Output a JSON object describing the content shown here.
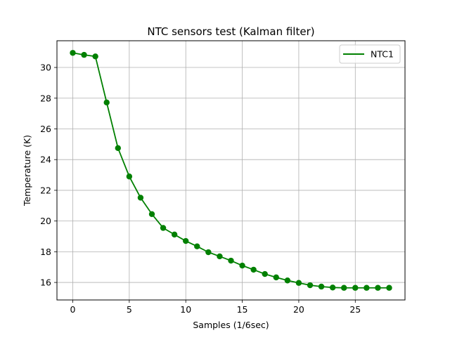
{
  "chart_data": {
    "type": "line",
    "title": "NTC sensors test (Kalman filter)",
    "xlabel": "Samples (1/6sec)",
    "ylabel": "Temperature (K)",
    "xlim": [
      -1.4,
      29.4
    ],
    "ylim": [
      14.86,
      31.74
    ],
    "xticks": [
      0,
      5,
      10,
      15,
      20,
      25
    ],
    "yticks": [
      16,
      18,
      20,
      22,
      24,
      26,
      28,
      30
    ],
    "grid": true,
    "legend_position": "top-right",
    "series": [
      {
        "name": "NTC1",
        "color": "#008000",
        "marker": "circle",
        "x": [
          0,
          1,
          2,
          3,
          4,
          5,
          6,
          7,
          8,
          9,
          10,
          11,
          12,
          13,
          14,
          15,
          16,
          17,
          18,
          19,
          20,
          21,
          22,
          23,
          24,
          25,
          26,
          27,
          28
        ],
        "y": [
          30.95,
          30.82,
          30.72,
          27.72,
          24.75,
          22.9,
          21.52,
          20.45,
          19.55,
          19.12,
          18.7,
          18.35,
          17.97,
          17.7,
          17.42,
          17.1,
          16.83,
          16.55,
          16.33,
          16.13,
          15.97,
          15.82,
          15.73,
          15.67,
          15.65,
          15.65,
          15.65,
          15.65,
          15.65
        ]
      }
    ]
  }
}
